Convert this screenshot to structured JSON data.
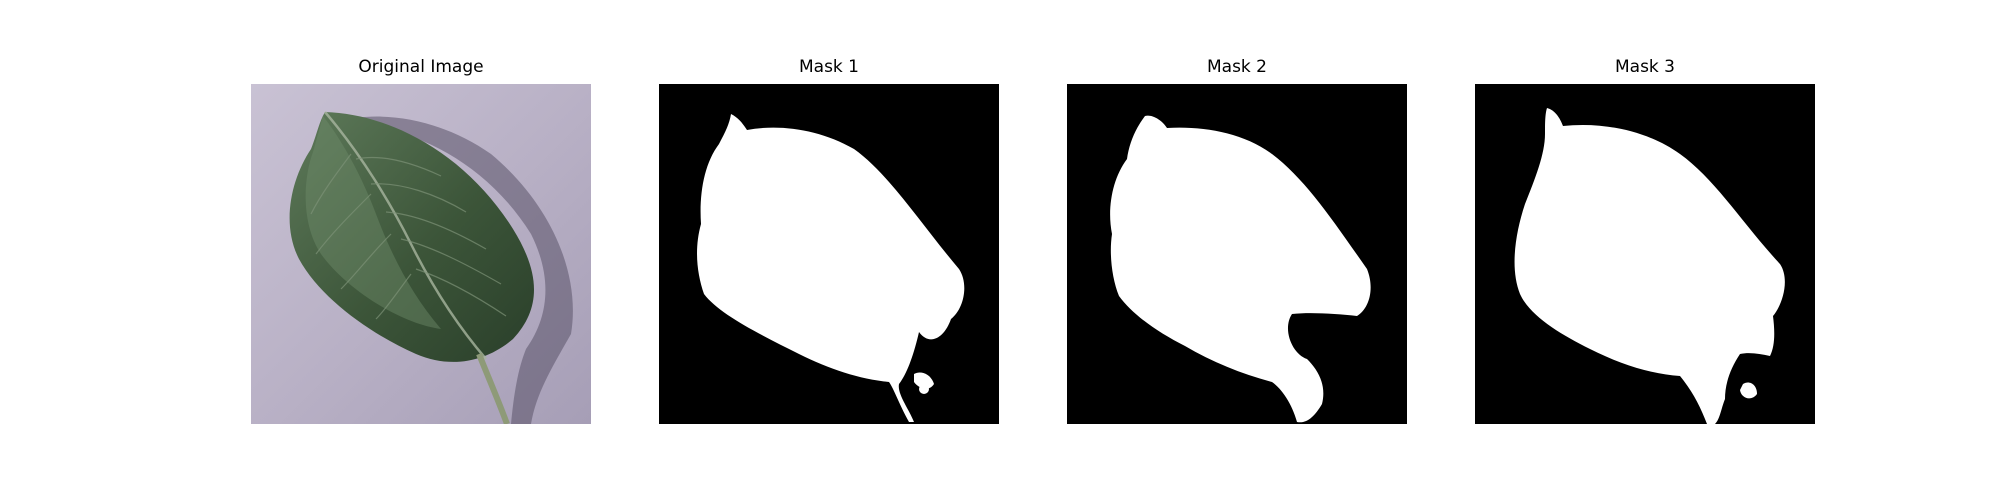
{
  "panels": [
    {
      "title": "Original Image"
    },
    {
      "title": "Mask 1"
    },
    {
      "title": "Mask 2"
    },
    {
      "title": "Mask 3"
    }
  ],
  "colors": {
    "background_photo": "#b8b0c4",
    "leaf": "#3f5a3c",
    "mask_background": "#000000",
    "mask_foreground": "#ffffff"
  }
}
